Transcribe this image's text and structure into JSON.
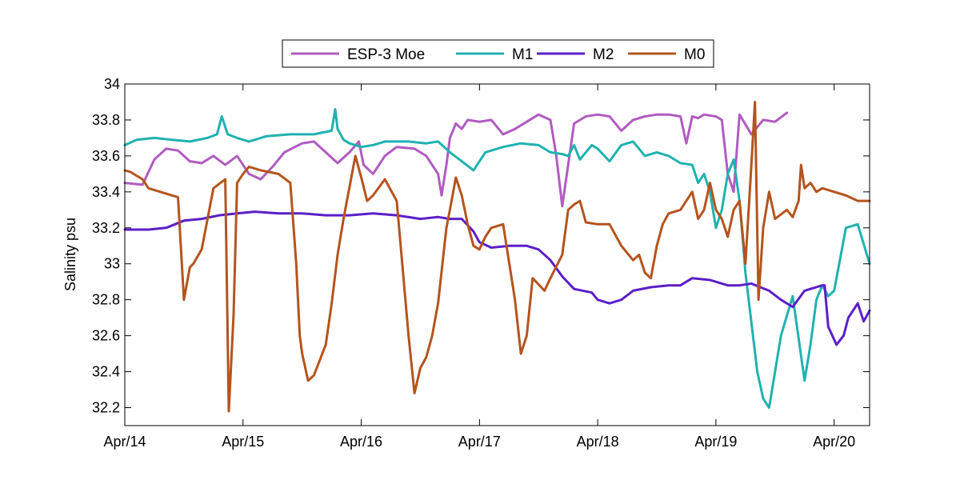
{
  "chart_data": {
    "type": "line",
    "title": "",
    "xlabel": "",
    "ylabel": "Salinity psu",
    "xlim": [
      0,
      6.3
    ],
    "ylim": [
      32.1,
      34.0
    ],
    "x_ticks": [
      0,
      1,
      2,
      3,
      4,
      5,
      6
    ],
    "x_tick_labels": [
      "Apr/14",
      "Apr/15",
      "Apr/16",
      "Apr/17",
      "Apr/18",
      "Apr/19",
      "Apr/20"
    ],
    "y_ticks": [
      32.2,
      32.4,
      32.6,
      32.8,
      33.0,
      33.2,
      33.4,
      33.6,
      33.8,
      34.0
    ],
    "y_tick_labels": [
      "32.2",
      "32.4",
      "32.6",
      "32.8",
      "33",
      "33.2",
      "33.4",
      "33.6",
      "33.8",
      "34"
    ],
    "grid": false,
    "legend": {
      "placement": "top-center",
      "orientation": "horizontal"
    },
    "series": [
      {
        "name": "ESP-3 Moe",
        "color": "#b05cc0",
        "x": [
          0,
          0.15,
          0.25,
          0.35,
          0.45,
          0.55,
          0.65,
          0.75,
          0.85,
          0.95,
          1.05,
          1.15,
          1.25,
          1.35,
          1.5,
          1.6,
          1.7,
          1.8,
          1.9,
          1.98,
          2.02,
          2.1,
          2.2,
          2.3,
          2.45,
          2.55,
          2.65,
          2.68,
          2.72,
          2.75,
          2.8,
          2.85,
          2.9,
          3.0,
          3.1,
          3.2,
          3.3,
          3.4,
          3.5,
          3.6,
          3.65,
          3.7,
          3.75,
          3.8,
          3.9,
          4.0,
          4.1,
          4.2,
          4.3,
          4.4,
          4.5,
          4.6,
          4.7,
          4.75,
          4.8,
          4.85,
          4.9,
          5.0,
          5.05,
          5.1,
          5.15,
          5.2,
          5.3,
          5.4,
          5.5,
          5.6
        ],
        "values": [
          33.45,
          33.44,
          33.58,
          33.64,
          33.63,
          33.57,
          33.56,
          33.6,
          33.55,
          33.6,
          33.5,
          33.47,
          33.54,
          33.62,
          33.67,
          33.68,
          33.62,
          33.56,
          33.62,
          33.68,
          33.55,
          33.5,
          33.6,
          33.65,
          33.64,
          33.6,
          33.5,
          33.38,
          33.55,
          33.7,
          33.78,
          33.75,
          33.8,
          33.79,
          33.8,
          33.72,
          33.75,
          33.79,
          33.83,
          33.8,
          33.6,
          33.32,
          33.55,
          33.78,
          33.82,
          33.83,
          33.82,
          33.74,
          33.8,
          33.82,
          33.83,
          33.83,
          33.82,
          33.67,
          33.82,
          33.81,
          33.83,
          33.82,
          33.8,
          33.5,
          33.4,
          33.83,
          33.72,
          33.8,
          33.79,
          33.84
        ]
      },
      {
        "name": "M1",
        "color": "#20b2b0",
        "x": [
          0,
          0.1,
          0.25,
          0.4,
          0.55,
          0.7,
          0.78,
          0.82,
          0.87,
          0.95,
          1.05,
          1.2,
          1.4,
          1.6,
          1.75,
          1.78,
          1.8,
          1.85,
          1.9,
          2.0,
          2.1,
          2.2,
          2.4,
          2.55,
          2.65,
          2.75,
          2.85,
          2.95,
          3.05,
          3.2,
          3.35,
          3.5,
          3.6,
          3.7,
          3.75,
          3.8,
          3.85,
          3.95,
          4.0,
          4.1,
          4.2,
          4.3,
          4.4,
          4.5,
          4.6,
          4.7,
          4.8,
          4.85,
          4.9,
          4.95,
          5.0,
          5.05,
          5.1,
          5.15,
          5.2,
          5.25,
          5.35,
          5.4,
          5.45,
          5.55,
          5.65,
          5.75,
          5.8,
          5.85,
          5.9,
          5.95,
          6.0,
          6.1,
          6.2,
          6.3
        ],
        "values": [
          33.66,
          33.69,
          33.7,
          33.69,
          33.68,
          33.7,
          33.72,
          33.82,
          33.72,
          33.7,
          33.68,
          33.71,
          33.72,
          33.72,
          33.74,
          33.86,
          33.75,
          33.69,
          33.67,
          33.65,
          33.66,
          33.68,
          33.68,
          33.67,
          33.68,
          33.62,
          33.57,
          33.52,
          33.62,
          33.65,
          33.67,
          33.66,
          33.62,
          33.61,
          33.6,
          33.66,
          33.58,
          33.66,
          33.64,
          33.57,
          33.66,
          33.68,
          33.6,
          33.62,
          33.6,
          33.56,
          33.55,
          33.45,
          33.5,
          33.4,
          33.2,
          33.3,
          33.5,
          33.58,
          33.35,
          32.95,
          32.4,
          32.25,
          32.2,
          32.6,
          32.82,
          32.35,
          32.55,
          32.8,
          32.88,
          32.82,
          32.85,
          33.2,
          33.22,
          33.0
        ]
      },
      {
        "name": "M2",
        "color": "#5b1fc8",
        "x": [
          0,
          0.2,
          0.35,
          0.5,
          0.65,
          0.8,
          0.95,
          1.1,
          1.3,
          1.5,
          1.7,
          1.9,
          2.1,
          2.3,
          2.5,
          2.65,
          2.75,
          2.85,
          2.95,
          3.0,
          3.1,
          3.25,
          3.4,
          3.5,
          3.6,
          3.7,
          3.8,
          3.95,
          4.0,
          4.1,
          4.2,
          4.3,
          4.45,
          4.6,
          4.7,
          4.8,
          4.95,
          5.1,
          5.2,
          5.3,
          5.45,
          5.55,
          5.65,
          5.75,
          5.9,
          5.92,
          5.95,
          6.02,
          6.08,
          6.12,
          6.2,
          6.25,
          6.3
        ],
        "values": [
          33.19,
          33.19,
          33.2,
          33.24,
          33.25,
          33.27,
          33.28,
          33.29,
          33.28,
          33.28,
          33.27,
          33.27,
          33.28,
          33.27,
          33.25,
          33.26,
          33.25,
          33.25,
          33.18,
          33.12,
          33.09,
          33.1,
          33.1,
          33.08,
          33.02,
          32.93,
          32.86,
          32.84,
          32.8,
          32.78,
          32.8,
          32.85,
          32.87,
          32.88,
          32.88,
          32.92,
          32.91,
          32.88,
          32.88,
          32.89,
          32.85,
          32.8,
          32.76,
          32.85,
          32.88,
          32.88,
          32.65,
          32.55,
          32.6,
          32.7,
          32.78,
          32.68,
          32.74
        ]
      },
      {
        "name": "M0",
        "color": "#b4541e",
        "x": [
          0,
          0.05,
          0.15,
          0.2,
          0.3,
          0.45,
          0.5,
          0.55,
          0.58,
          0.65,
          0.75,
          0.85,
          0.88,
          0.92,
          0.95,
          1.0,
          1.05,
          1.15,
          1.3,
          1.4,
          1.45,
          1.48,
          1.5,
          1.55,
          1.6,
          1.7,
          1.75,
          1.8,
          1.85,
          1.95,
          2.0,
          2.05,
          2.1,
          2.2,
          2.3,
          2.4,
          2.45,
          2.5,
          2.55,
          2.6,
          2.65,
          2.72,
          2.75,
          2.8,
          2.85,
          2.9,
          2.95,
          3.0,
          3.05,
          3.1,
          3.2,
          3.3,
          3.35,
          3.4,
          3.45,
          3.55,
          3.6,
          3.7,
          3.75,
          3.8,
          3.85,
          3.9,
          4.0,
          4.1,
          4.2,
          4.3,
          4.35,
          4.4,
          4.45,
          4.5,
          4.55,
          4.6,
          4.7,
          4.75,
          4.8,
          4.85,
          4.9,
          4.95,
          5.0,
          5.05,
          5.1,
          5.15,
          5.2,
          5.25,
          5.3,
          5.33,
          5.36,
          5.4,
          5.45,
          5.5,
          5.6,
          5.65,
          5.7,
          5.72,
          5.75,
          5.8,
          5.85,
          5.9,
          6.0,
          6.1,
          6.2,
          6.3
        ],
        "values": [
          33.52,
          33.51,
          33.47,
          33.42,
          33.4,
          33.37,
          32.8,
          32.98,
          33.0,
          33.08,
          33.42,
          33.47,
          32.18,
          32.72,
          33.45,
          33.5,
          33.54,
          33.52,
          33.5,
          33.45,
          33.0,
          32.6,
          32.5,
          32.35,
          32.38,
          32.55,
          32.78,
          33.05,
          33.25,
          33.6,
          33.48,
          33.35,
          33.38,
          33.47,
          33.35,
          32.6,
          32.28,
          32.42,
          32.48,
          32.6,
          32.78,
          33.2,
          33.3,
          33.48,
          33.38,
          33.22,
          33.1,
          33.08,
          33.15,
          33.2,
          33.22,
          32.8,
          32.5,
          32.6,
          32.92,
          32.85,
          32.92,
          33.05,
          33.3,
          33.33,
          33.35,
          33.23,
          33.22,
          33.22,
          33.1,
          33.02,
          33.05,
          32.95,
          32.92,
          33.1,
          33.22,
          33.28,
          33.3,
          33.35,
          33.4,
          33.25,
          33.3,
          33.45,
          33.3,
          33.25,
          33.15,
          33.3,
          33.35,
          33.0,
          33.55,
          33.9,
          32.8,
          33.2,
          33.4,
          33.25,
          33.3,
          33.26,
          33.35,
          33.55,
          33.42,
          33.45,
          33.4,
          33.42,
          33.4,
          33.38,
          33.35,
          33.35
        ]
      }
    ]
  }
}
